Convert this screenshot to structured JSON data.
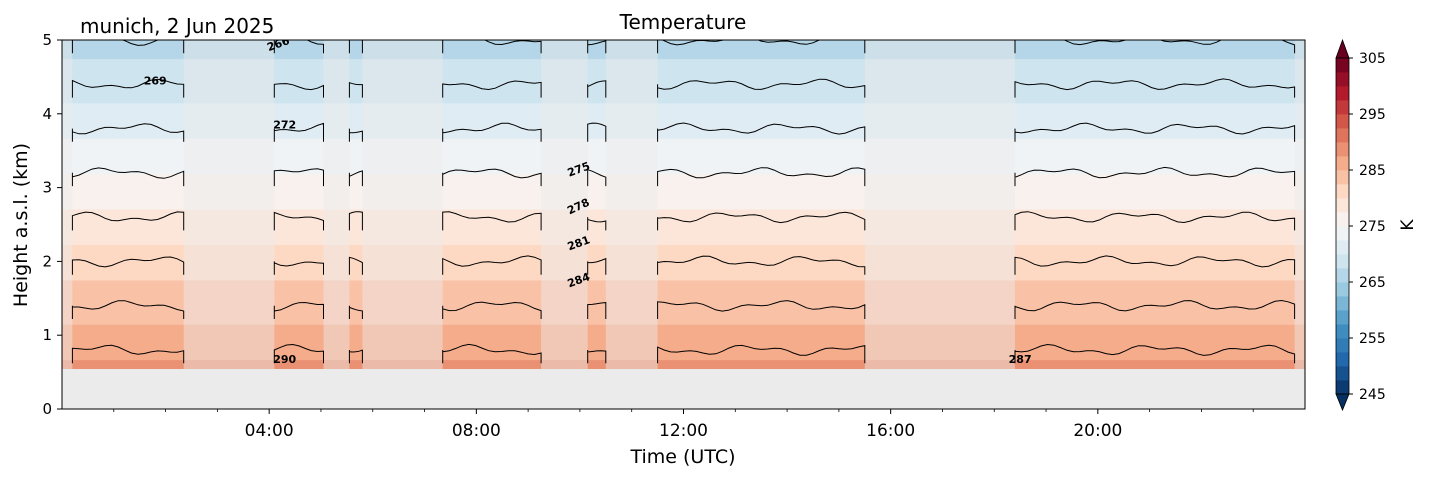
{
  "chart_data": {
    "type": "heatmap",
    "title": "Temperature",
    "subtitle": "munich, 2 Jun 2025",
    "xlabel": "Time (UTC)",
    "ylabel": "Height a.s.l. (km)",
    "xlim": [
      0,
      24
    ],
    "ylim": [
      0,
      5
    ],
    "x_ticks": [
      4,
      8,
      12,
      16,
      20
    ],
    "x_tick_labels": [
      "04:00",
      "08:00",
      "12:00",
      "16:00",
      "20:00"
    ],
    "y_ticks": [
      0,
      1,
      2,
      3,
      4,
      5
    ],
    "y_tick_labels": [
      "0",
      "1",
      "2",
      "3",
      "4",
      "5"
    ],
    "colorbar": {
      "label": "K",
      "min": 245,
      "max": 305,
      "step": 2.5,
      "ticks": [
        245,
        255,
        265,
        275,
        285,
        295,
        305
      ],
      "tick_labels": [
        "245",
        "255",
        "265",
        "275",
        "285",
        "295",
        "305"
      ],
      "colormap": "RdBu_r",
      "extend": "both"
    },
    "data_bottom_km": 0.55,
    "missing_color": "#ebebeb",
    "dense_periods": [
      [
        0.2,
        2.35
      ],
      [
        4.1,
        5.05
      ],
      [
        5.55,
        5.8
      ],
      [
        7.35,
        9.25
      ],
      [
        10.15,
        10.5
      ],
      [
        11.5,
        15.5
      ],
      [
        18.4,
        23.8
      ]
    ],
    "surface_temperature": 291,
    "lapse_rate_k_per_km": 5.0,
    "contour_lines_K": [
      266,
      269,
      272,
      275,
      278,
      281,
      284,
      287,
      290
    ],
    "contour_labels": [
      {
        "text": "266",
        "x": 4.2,
        "y": 4.9,
        "rotate": -20
      },
      {
        "text": "269",
        "x": 1.8,
        "y": 4.4,
        "rotate": 0
      },
      {
        "text": "272",
        "x": 4.3,
        "y": 3.8,
        "rotate": 0
      },
      {
        "text": "275",
        "x": 10.0,
        "y": 3.2,
        "rotate": -20
      },
      {
        "text": "278",
        "x": 10.0,
        "y": 2.7,
        "rotate": -25
      },
      {
        "text": "281",
        "x": 10.0,
        "y": 2.2,
        "rotate": -20
      },
      {
        "text": "284",
        "x": 10.0,
        "y": 1.7,
        "rotate": -20
      },
      {
        "text": "290",
        "x": 4.3,
        "y": 0.62,
        "rotate": 0
      },
      {
        "text": "287",
        "x": 18.5,
        "y": 0.62,
        "rotate": 0
      }
    ]
  }
}
